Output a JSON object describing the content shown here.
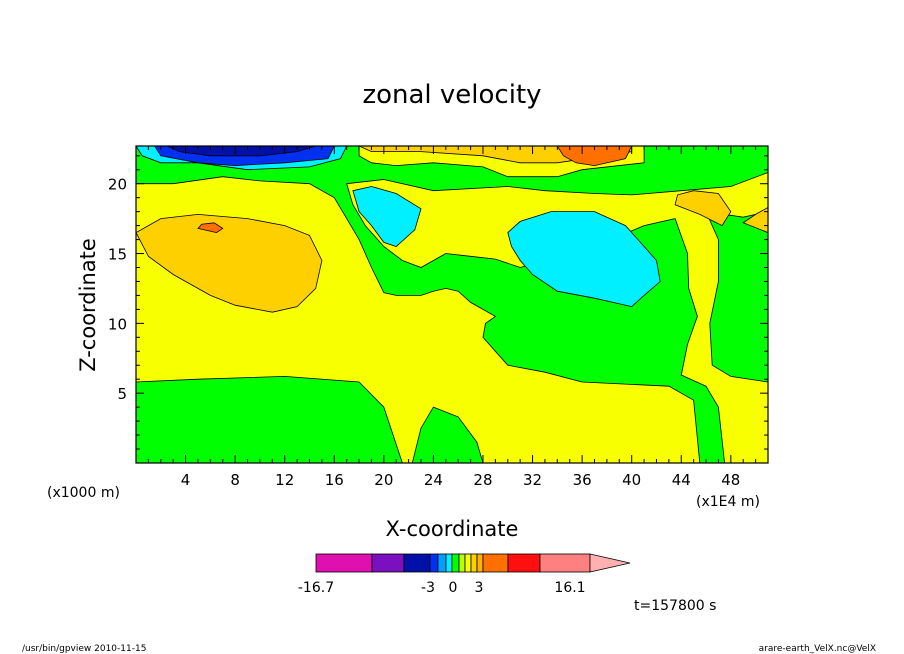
{
  "chart_data": {
    "type": "heatmap",
    "title": "zonal velocity",
    "xlabel": "X-coordinate",
    "ylabel": "Z-coordinate",
    "x_ticks": [
      "4",
      "8",
      "12",
      "16",
      "20",
      "24",
      "28",
      "32",
      "36",
      "40",
      "44",
      "48"
    ],
    "y_ticks": [
      "5",
      "10",
      "15",
      "20"
    ],
    "x_units": "(x1E4 m)",
    "y_units": "(x1000 m)",
    "xlim": [
      0,
      51
    ],
    "ylim": [
      0,
      22.7
    ],
    "grid": false,
    "colorbar": {
      "min_label": "-16.7",
      "max_label": "16.1",
      "mid_labels": [
        "-3",
        "0",
        "3"
      ],
      "colors": [
        "#e010b0",
        "#7a10c0",
        "#0010a8",
        "#0030f0",
        "#00a0ff",
        "#00f0ff",
        "#00ff00",
        "#b8ff00",
        "#f8ff00",
        "#ffd000",
        "#ffb000",
        "#ff7000",
        "#ff1010",
        "#ff8080",
        "#ffb0b0"
      ]
    },
    "contours": [
      {
        "color": "#00ff00",
        "points": [
          [
            0,
            0
          ],
          [
            51,
            0
          ],
          [
            51,
            22.7
          ],
          [
            0,
            22.7
          ]
        ]
      },
      {
        "color": "#f8ff00",
        "points": [
          [
            0,
            5.8
          ],
          [
            5,
            6.0
          ],
          [
            12,
            6.2
          ],
          [
            18,
            5.8
          ],
          [
            20,
            4.0
          ],
          [
            21.5,
            0
          ],
          [
            22.3,
            0
          ],
          [
            23,
            2.5
          ],
          [
            24,
            4.0
          ],
          [
            26,
            3.3
          ],
          [
            27.5,
            1.5
          ],
          [
            28,
            0
          ],
          [
            45.5,
            0
          ],
          [
            45,
            4.5
          ],
          [
            44,
            5.0
          ],
          [
            43,
            5.5
          ],
          [
            36,
            5.8
          ],
          [
            33,
            6.5
          ],
          [
            30,
            7.0
          ],
          [
            29,
            8.0
          ],
          [
            28,
            9.0
          ],
          [
            28.2,
            10.0
          ],
          [
            29,
            10.5
          ],
          [
            28,
            11.0
          ],
          [
            27,
            11.5
          ],
          [
            26,
            12.3
          ],
          [
            25,
            12.5
          ],
          [
            24,
            12.3
          ],
          [
            23,
            12.0
          ],
          [
            21,
            12.0
          ],
          [
            20,
            12.2
          ],
          [
            19,
            14.0
          ],
          [
            18,
            16.0
          ],
          [
            17,
            17.5
          ],
          [
            16,
            19.0
          ],
          [
            14,
            20.0
          ],
          [
            10,
            20.2
          ],
          [
            7,
            20.5
          ],
          [
            3,
            20.0
          ],
          [
            0,
            20.0
          ]
        ]
      },
      {
        "color": "#f8ff00",
        "points": [
          [
            17,
            20.0
          ],
          [
            20,
            20.3
          ],
          [
            24,
            19.5
          ],
          [
            30,
            19.8
          ],
          [
            33,
            19.5
          ],
          [
            37,
            19.3
          ],
          [
            40,
            19.2
          ],
          [
            44,
            19.5
          ],
          [
            48,
            19.8
          ],
          [
            51,
            20.8
          ],
          [
            51,
            18.0
          ],
          [
            49,
            17.6
          ],
          [
            46,
            18.0
          ],
          [
            47,
            16.0
          ],
          [
            47,
            13.0
          ],
          [
            46.3,
            10.0
          ],
          [
            46.5,
            7.0
          ],
          [
            48,
            6.2
          ],
          [
            51,
            5.8
          ],
          [
            51,
            0
          ],
          [
            47.5,
            0
          ],
          [
            47,
            4.0
          ],
          [
            46,
            5.5
          ],
          [
            44,
            6.3
          ],
          [
            44.5,
            8.5
          ],
          [
            45.3,
            10.5
          ],
          [
            44.6,
            12.5
          ],
          [
            44.5,
            15.0
          ],
          [
            43.5,
            17.5
          ],
          [
            41,
            17.0
          ],
          [
            37,
            15.5
          ],
          [
            34,
            15.0
          ],
          [
            33,
            14.5
          ],
          [
            31,
            14.0
          ],
          [
            29,
            14.6
          ],
          [
            27,
            14.8
          ],
          [
            25,
            15.0
          ],
          [
            23,
            14.0
          ],
          [
            21.5,
            14.5
          ],
          [
            20,
            15.5
          ],
          [
            18.5,
            17.0
          ],
          [
            17.5,
            18.5
          ]
        ]
      },
      {
        "color": "#f8ff00",
        "points": [
          [
            18,
            22.7
          ],
          [
            41,
            22.7
          ],
          [
            41,
            21.5
          ],
          [
            36,
            21.0
          ],
          [
            34,
            20.5
          ],
          [
            30,
            20.5
          ],
          [
            28,
            21.2
          ],
          [
            24,
            21.5
          ],
          [
            21,
            21.3
          ],
          [
            19,
            21.5
          ],
          [
            18,
            22.0
          ]
        ]
      },
      {
        "color": "#ffd000",
        "points": [
          [
            18,
            22.7
          ],
          [
            40,
            22.7
          ],
          [
            40,
            22.3
          ],
          [
            34,
            21.5
          ],
          [
            31,
            21.5
          ],
          [
            28,
            22.0
          ],
          [
            23,
            22.3
          ],
          [
            19,
            22.3
          ]
        ]
      },
      {
        "color": "#ffd000",
        "points": [
          [
            0,
            16.5
          ],
          [
            1,
            14.8
          ],
          [
            3,
            13.5
          ],
          [
            6,
            12.0
          ],
          [
            8,
            11.3
          ],
          [
            11,
            10.8
          ],
          [
            13,
            11.2
          ],
          [
            14.5,
            12.5
          ],
          [
            15,
            14.5
          ],
          [
            14,
            16.3
          ],
          [
            12,
            17.0
          ],
          [
            9,
            17.5
          ],
          [
            5,
            17.8
          ],
          [
            2,
            17.5
          ]
        ]
      },
      {
        "color": "#ffd000",
        "points": [
          [
            43.5,
            18.5
          ],
          [
            45.5,
            17.8
          ],
          [
            47.3,
            17.0
          ],
          [
            48,
            18.0
          ],
          [
            47,
            19.3
          ],
          [
            45,
            19.5
          ],
          [
            43.7,
            19.2
          ]
        ]
      },
      {
        "color": "#ffd000",
        "points": [
          [
            49,
            17.2
          ],
          [
            51,
            16.5
          ],
          [
            51,
            18.3
          ],
          [
            50,
            17.8
          ]
        ]
      },
      {
        "color": "#ff7000",
        "points": [
          [
            34,
            22.7
          ],
          [
            40,
            22.7
          ],
          [
            39.5,
            21.8
          ],
          [
            37,
            21.3
          ],
          [
            35.5,
            21.5
          ],
          [
            34.5,
            22.0
          ]
        ]
      },
      {
        "color": "#ff7000",
        "points": [
          [
            5,
            16.8
          ],
          [
            6.5,
            16.5
          ],
          [
            7,
            16.8
          ],
          [
            6.3,
            17.2
          ],
          [
            5.3,
            17.1
          ]
        ]
      },
      {
        "color": "#00f0ff",
        "points": [
          [
            0,
            22.7
          ],
          [
            17,
            22.7
          ],
          [
            16.5,
            21.8
          ],
          [
            14,
            21.2
          ],
          [
            9,
            21.0
          ],
          [
            5,
            21.5
          ],
          [
            2,
            21.5
          ],
          [
            0.5,
            22.0
          ]
        ]
      },
      {
        "color": "#0030f0",
        "points": [
          [
            1.5,
            22.7
          ],
          [
            16,
            22.7
          ],
          [
            15.5,
            21.8
          ],
          [
            12,
            21.5
          ],
          [
            8,
            21.3
          ],
          [
            5,
            21.5
          ],
          [
            2,
            22.0
          ]
        ]
      },
      {
        "color": "#0010a8",
        "points": [
          [
            2.5,
            22.7
          ],
          [
            14.5,
            22.7
          ],
          [
            13,
            22.3
          ],
          [
            10,
            22.0
          ],
          [
            6,
            22.0
          ],
          [
            3.5,
            22.3
          ]
        ]
      },
      {
        "color": "#00f0ff",
        "points": [
          [
            17.5,
            19.5
          ],
          [
            19,
            19.8
          ],
          [
            21,
            19.3
          ],
          [
            23,
            18.2
          ],
          [
            22.5,
            16.7
          ],
          [
            21,
            15.5
          ],
          [
            20,
            15.8
          ],
          [
            19,
            17.0
          ],
          [
            18,
            18.0
          ]
        ]
      },
      {
        "color": "#00f0ff",
        "points": [
          [
            30,
            16.5
          ],
          [
            31,
            17.3
          ],
          [
            33.5,
            18.0
          ],
          [
            37,
            18.0
          ],
          [
            39.5,
            17.0
          ],
          [
            41,
            15.5
          ],
          [
            42,
            14.5
          ],
          [
            42.3,
            13.0
          ],
          [
            41,
            12.0
          ],
          [
            40,
            11.2
          ],
          [
            37,
            11.8
          ],
          [
            34,
            12.3
          ],
          [
            32,
            13.5
          ],
          [
            31,
            14.5
          ],
          [
            30.3,
            15.5
          ]
        ]
      }
    ]
  },
  "plot": {
    "xaxis_title": "X-coordinate",
    "yaxis_title": "Z-coordinate",
    "x_unit_note": "(x1E4 m)",
    "y_unit_note": "(x1000 m)"
  },
  "footer": {
    "time_label": "t=157800 s",
    "left_note": "/usr/bin/gpview  2010-11-15",
    "right_note": "arare-earth_VelX.nc@VelX"
  }
}
